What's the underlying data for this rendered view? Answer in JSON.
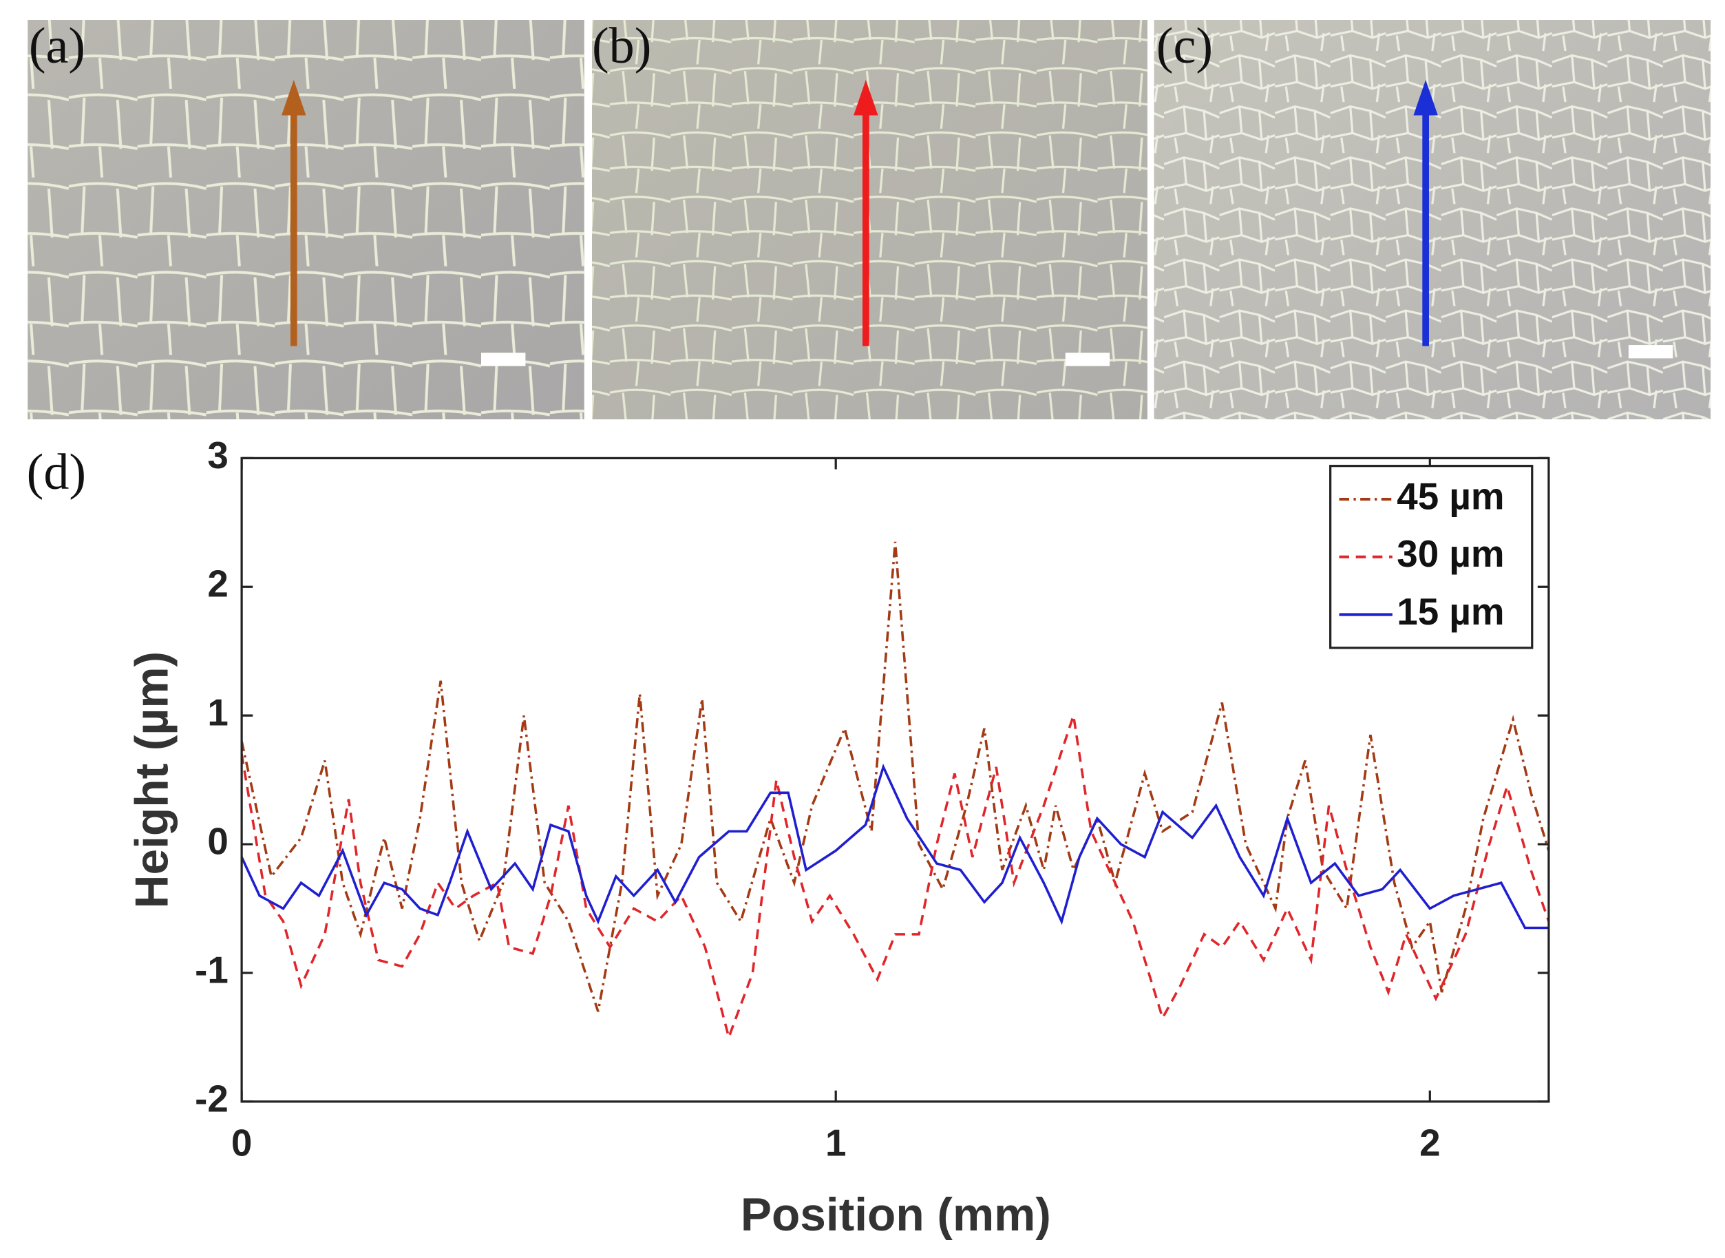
{
  "panels": [
    "(a)",
    "(b)",
    "(c)"
  ],
  "chart_data": {
    "type": "line",
    "panel": "(d)",
    "xlabel": "Position (mm)",
    "ylabel": "Height (µm)",
    "xlim": [
      0,
      2.2
    ],
    "ylim": [
      -2,
      3
    ],
    "xticks": [
      0,
      1,
      2
    ],
    "yticks": [
      -2,
      -1,
      0,
      1,
      2,
      3
    ],
    "legend": "upper right",
    "series": [
      {
        "name": "45 µm",
        "color": "#a33a14",
        "linestyle": "dashdot",
        "x": [
          0,
          0.05,
          0.1,
          0.14,
          0.17,
          0.2,
          0.24,
          0.27,
          0.3,
          0.335,
          0.37,
          0.4,
          0.44,
          0.475,
          0.51,
          0.55,
          0.6,
          0.64,
          0.67,
          0.7,
          0.74,
          0.775,
          0.8,
          0.84,
          0.89,
          0.93,
          0.96,
          1.015,
          1.06,
          1.1,
          1.14,
          1.18,
          1.22,
          1.25,
          1.28,
          1.32,
          1.35,
          1.37,
          1.4,
          1.44,
          1.47,
          1.52,
          1.55,
          1.6,
          1.65,
          1.69,
          1.74,
          1.76,
          1.79,
          1.82,
          1.86,
          1.9,
          1.94,
          1.97,
          2.0,
          2.02,
          2.06,
          2.09,
          2.14,
          2.17,
          2.2
        ],
        "values": [
          0.8,
          -0.25,
          0.05,
          0.65,
          -0.3,
          -0.7,
          0.05,
          -0.5,
          0.2,
          1.27,
          -0.3,
          -0.75,
          -0.3,
          1.0,
          -0.3,
          -0.6,
          -1.3,
          -0.3,
          1.17,
          -0.4,
          0.0,
          1.13,
          -0.3,
          -0.6,
          0.2,
          -0.3,
          0.3,
          0.9,
          0.1,
          2.35,
          0.0,
          -0.35,
          0.3,
          0.9,
          -0.2,
          0.3,
          -0.2,
          0.3,
          -0.2,
          0.2,
          -0.3,
          0.55,
          0.1,
          0.25,
          1.1,
          0.0,
          -0.5,
          0.2,
          0.65,
          -0.2,
          -0.5,
          0.85,
          -0.3,
          -0.8,
          -0.6,
          -1.15,
          -0.5,
          0.2,
          0.97,
          0.4,
          -0.05
        ]
      },
      {
        "name": "30 µm",
        "color": "#e0262a",
        "linestyle": "dashed",
        "x": [
          0,
          0.04,
          0.07,
          0.1,
          0.14,
          0.18,
          0.2,
          0.23,
          0.27,
          0.3,
          0.33,
          0.36,
          0.39,
          0.43,
          0.45,
          0.49,
          0.52,
          0.55,
          0.58,
          0.62,
          0.66,
          0.7,
          0.74,
          0.78,
          0.82,
          0.86,
          0.9,
          0.93,
          0.96,
          0.99,
          1.03,
          1.07,
          1.1,
          1.14,
          1.17,
          1.2,
          1.23,
          1.27,
          1.3,
          1.35,
          1.4,
          1.43,
          1.47,
          1.5,
          1.55,
          1.58,
          1.62,
          1.65,
          1.68,
          1.72,
          1.76,
          1.8,
          1.83,
          1.86,
          1.9,
          1.93,
          1.96,
          2.01,
          2.06,
          2.1,
          2.13,
          2.17,
          2.2
        ],
        "values": [
          0.7,
          -0.4,
          -0.6,
          -1.1,
          -0.7,
          0.35,
          -0.3,
          -0.9,
          -0.95,
          -0.7,
          -0.3,
          -0.5,
          -0.4,
          -0.3,
          -0.8,
          -0.85,
          -0.4,
          0.3,
          -0.5,
          -0.8,
          -0.5,
          -0.6,
          -0.4,
          -0.8,
          -1.5,
          -1.0,
          0.5,
          -0.1,
          -0.6,
          -0.4,
          -0.7,
          -1.05,
          -0.7,
          -0.7,
          0.0,
          0.55,
          -0.1,
          0.6,
          -0.3,
          0.3,
          1.0,
          0.1,
          -0.3,
          -0.6,
          -1.35,
          -1.1,
          -0.7,
          -0.8,
          -0.6,
          -0.9,
          -0.5,
          -0.9,
          0.3,
          -0.2,
          -0.8,
          -1.15,
          -0.7,
          -1.2,
          -0.7,
          0.0,
          0.45,
          -0.2,
          -0.6
        ]
      },
      {
        "name": "15 µm",
        "color": "#1f1fd0",
        "linestyle": "solid",
        "x": [
          0,
          0.03,
          0.07,
          0.1,
          0.13,
          0.17,
          0.21,
          0.24,
          0.27,
          0.3,
          0.33,
          0.35,
          0.38,
          0.42,
          0.46,
          0.49,
          0.52,
          0.55,
          0.58,
          0.6,
          0.63,
          0.66,
          0.7,
          0.73,
          0.77,
          0.82,
          0.85,
          0.89,
          0.92,
          0.95,
          1.0,
          1.05,
          1.08,
          1.12,
          1.17,
          1.21,
          1.25,
          1.28,
          1.31,
          1.35,
          1.38,
          1.41,
          1.44,
          1.48,
          1.52,
          1.55,
          1.6,
          1.64,
          1.68,
          1.72,
          1.76,
          1.8,
          1.84,
          1.88,
          1.92,
          1.95,
          2.0,
          2.04,
          2.08,
          2.12,
          2.16,
          2.2
        ],
        "values": [
          -0.1,
          -0.4,
          -0.5,
          -0.3,
          -0.4,
          -0.05,
          -0.55,
          -0.3,
          -0.35,
          -0.5,
          -0.55,
          -0.3,
          0.1,
          -0.35,
          -0.15,
          -0.35,
          0.15,
          0.1,
          -0.4,
          -0.6,
          -0.25,
          -0.4,
          -0.2,
          -0.45,
          -0.1,
          0.1,
          0.1,
          0.4,
          0.4,
          -0.2,
          -0.05,
          0.15,
          0.6,
          0.2,
          -0.15,
          -0.2,
          -0.45,
          -0.3,
          0.05,
          -0.3,
          -0.6,
          -0.1,
          0.2,
          0.0,
          -0.1,
          0.25,
          0.05,
          0.3,
          -0.1,
          -0.4,
          0.2,
          -0.3,
          -0.15,
          -0.4,
          -0.35,
          -0.2,
          -0.5,
          -0.4,
          -0.35,
          -0.3,
          -0.65,
          -0.65
        ]
      }
    ]
  }
}
